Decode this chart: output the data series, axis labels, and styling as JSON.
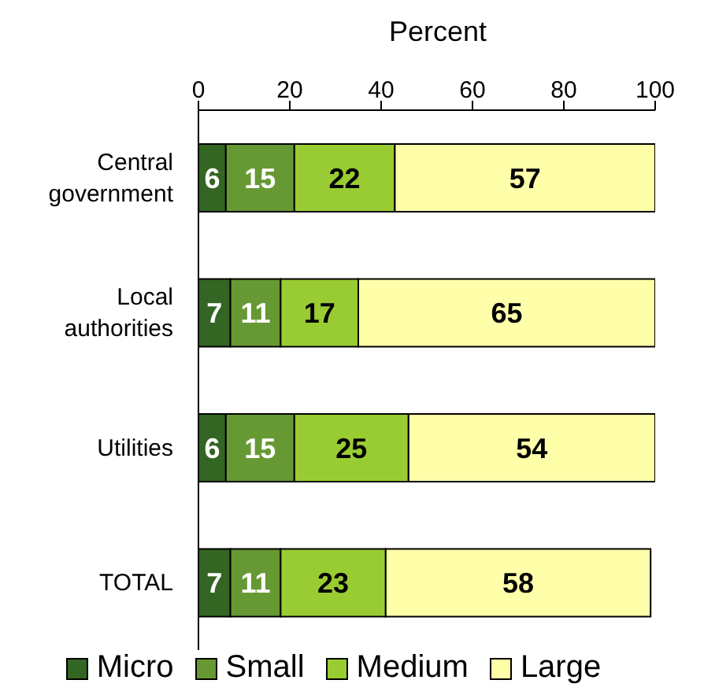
{
  "chart_data": {
    "type": "bar",
    "orientation": "horizontal",
    "stacked": true,
    "xlabel": "Percent",
    "categories": [
      "Central government",
      "Local authorities",
      "Utilities",
      "TOTAL"
    ],
    "series": [
      {
        "name": "Micro",
        "color": "#336622",
        "values": [
          6,
          7,
          6,
          7
        ]
      },
      {
        "name": "Small",
        "color": "#669933",
        "values": [
          15,
          11,
          15,
          11
        ]
      },
      {
        "name": "Medium",
        "color": "#99cc33",
        "values": [
          22,
          17,
          25,
          23
        ]
      },
      {
        "name": "Large",
        "color": "#ffffaa",
        "values": [
          57,
          65,
          54,
          58
        ]
      }
    ],
    "xlim": [
      0,
      100
    ],
    "xticks": [
      0,
      20,
      40,
      60,
      80,
      100
    ],
    "data_labels": true,
    "legend": "bottom",
    "grid": false
  }
}
